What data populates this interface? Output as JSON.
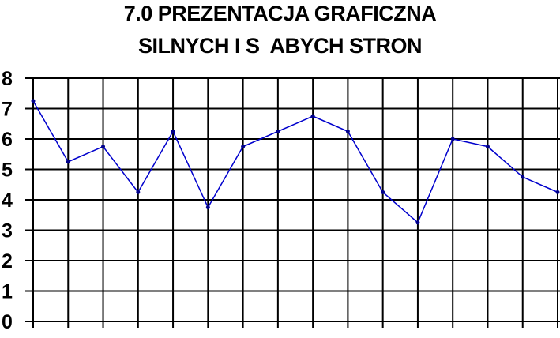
{
  "chart_data": {
    "type": "line",
    "title": [
      "7.0 PREZENTACJA GRAFICZNA",
      "SILNYCH I S  ABYCH STRON"
    ],
    "xlabel": "",
    "ylabel": "",
    "ylim": [
      0,
      8
    ],
    "yticks": [
      "0",
      "1",
      "2",
      "3",
      "4",
      "5",
      "6",
      "7",
      "8"
    ],
    "grid": true,
    "line_color": "#0000cc",
    "x": [
      1,
      2,
      3,
      4,
      5,
      6,
      7,
      8,
      9,
      10,
      11,
      12,
      13,
      14,
      15,
      16
    ],
    "values": [
      7.25,
      5.25,
      5.75,
      4.25,
      6.25,
      3.75,
      5.75,
      6.25,
      6.75,
      6.25,
      4.25,
      3.25,
      6.0,
      5.75,
      4.75,
      4.25
    ]
  }
}
